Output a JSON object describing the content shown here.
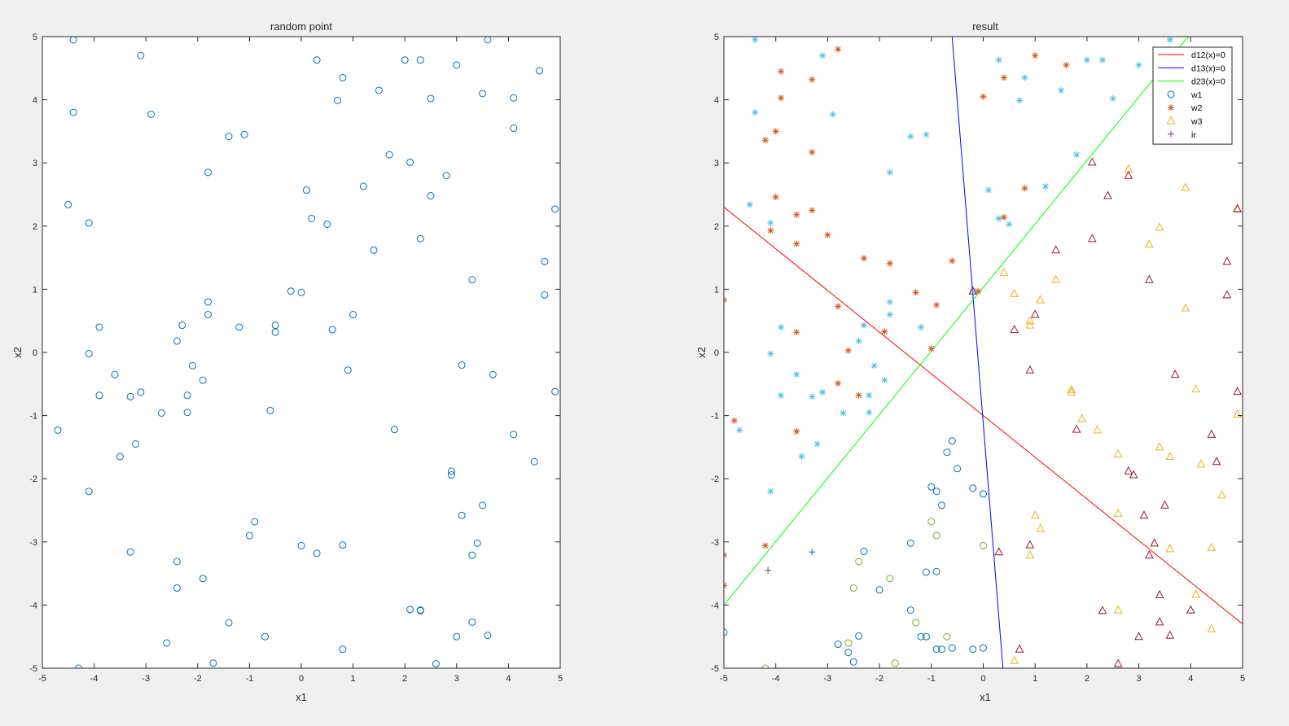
{
  "figure": {
    "background": "#f0f0f0",
    "axes_background": "#ffffff"
  },
  "chart_data": [
    {
      "type": "scatter",
      "title": "random point",
      "xlabel": "x1",
      "ylabel": "x2",
      "xlim": [
        -5,
        5
      ],
      "ylim": [
        -5,
        5
      ],
      "xticks": [
        -5,
        -4,
        -3,
        -2,
        -1,
        0,
        1,
        2,
        3,
        4,
        5
      ],
      "yticks": [
        -5,
        -4,
        -3,
        -2,
        -1,
        0,
        1,
        2,
        3,
        4,
        5
      ],
      "grid": false,
      "legend": null,
      "series": [
        {
          "marker": "circle",
          "color": "#0072bd",
          "x": [
            -4.4,
            -3.1,
            -4.4,
            -2.9,
            -4.5,
            -4.1,
            -3.9,
            -4.1,
            -3.6,
            -3.9,
            -4.7,
            -3.5,
            -4.1,
            -3.3,
            -1.4,
            -1.1,
            -1.8,
            -3.3,
            -2.6,
            -3.1,
            -3.2,
            -2.7,
            -2.3,
            -2.4,
            -2.1,
            -2.2,
            -2.2,
            -1.9,
            -1.8,
            -1.8,
            -1.2,
            -0.5,
            -0.5,
            -0.2,
            0.0,
            -0.6,
            -0.9,
            -1.0,
            -1.9,
            -2.4,
            -2.4,
            -1.7,
            -1.4,
            -0.7,
            0.3,
            0.8,
            0.7,
            0.1,
            0.2,
            0.5,
            0.6,
            1.0,
            0.9,
            0.8,
            1.2,
            1.4,
            1.5,
            1.7,
            1.8,
            2.0,
            2.1,
            2.3,
            2.3,
            2.5,
            2.5,
            2.8,
            3.0,
            3.1,
            3.3,
            3.6,
            3.5,
            4.1,
            4.1,
            4.6,
            4.7,
            4.9,
            4.9,
            4.7,
            4.1,
            4.5,
            3.7,
            3.5,
            3.4,
            3.3,
            3.1,
            2.9,
            2.9,
            2.3,
            2.1,
            2.6,
            3.0,
            3.6,
            3.3,
            0.0,
            0.3,
            0.8,
            2.3,
            -4.3
          ],
          "y": [
            4.95,
            4.7,
            3.8,
            3.77,
            2.34,
            2.05,
            0.4,
            -0.02,
            -0.35,
            -0.68,
            -1.23,
            -1.65,
            -2.2,
            -0.7,
            3.42,
            3.45,
            2.85,
            -3.16,
            -4.6,
            -0.63,
            -1.45,
            -0.96,
            0.43,
            0.18,
            -0.21,
            -0.68,
            -0.95,
            -0.44,
            0.8,
            0.6,
            0.4,
            0.43,
            0.32,
            0.97,
            0.95,
            -0.92,
            -2.68,
            -2.9,
            -3.58,
            -3.31,
            -3.73,
            -4.92,
            -4.28,
            -4.5,
            4.63,
            4.35,
            3.99,
            2.57,
            2.12,
            2.03,
            0.36,
            0.6,
            -0.28,
            -3.05,
            2.63,
            1.62,
            4.15,
            3.13,
            -1.22,
            4.63,
            3.01,
            4.63,
            1.8,
            4.02,
            2.48,
            2.8,
            4.55,
            -0.2,
            1.15,
            4.95,
            4.1,
            4.03,
            3.55,
            4.46,
            1.44,
            2.27,
            -0.62,
            0.91,
            -1.3,
            -1.73,
            -0.35,
            -2.42,
            -3.02,
            -3.21,
            -2.58,
            -1.88,
            -1.94,
            -4.08,
            -4.07,
            -4.93,
            -4.5,
            -4.48,
            -4.27,
            -3.06,
            -3.18,
            -4.7,
            -4.09,
            -5.0
          ]
        }
      ]
    },
    {
      "type": "scatter",
      "title": "result",
      "xlabel": "x1",
      "ylabel": "x2",
      "xlim": [
        -5,
        5
      ],
      "ylim": [
        -5,
        5
      ],
      "xticks": [
        -5,
        -4,
        -3,
        -2,
        -1,
        0,
        1,
        2,
        3,
        4,
        5
      ],
      "yticks": [
        -5,
        -4,
        -3,
        -2,
        -1,
        0,
        1,
        2,
        3,
        4,
        5
      ],
      "grid": false,
      "legend": {
        "position": "top-right",
        "entries": [
          {
            "label": "d12(x)=0",
            "kind": "line",
            "color": "#ff0000"
          },
          {
            "label": "d13(x)=0",
            "kind": "line",
            "color": "#0000ff"
          },
          {
            "label": "d23(x)=0",
            "kind": "line",
            "color": "#00ff00"
          },
          {
            "label": "w1",
            "kind": "circle",
            "color": "#0072bd"
          },
          {
            "label": "w2",
            "kind": "asterisk",
            "color": "#d95319"
          },
          {
            "label": "w3",
            "kind": "triangle",
            "color": "#edb120"
          },
          {
            "label": "ir",
            "kind": "plus",
            "color": "#7e2f8e"
          }
        ]
      },
      "lines": [
        {
          "name": "d12(x)=0",
          "color": "#ff0000",
          "x": [
            -5,
            5
          ],
          "y": [
            2.3,
            -4.3
          ]
        },
        {
          "name": "d13(x)=0",
          "color": "#0000ff",
          "x": [
            -0.6,
            0.38
          ],
          "y": [
            5.0,
            -5.0
          ]
        },
        {
          "name": "d23(x)=0",
          "color": "#00ff00",
          "x": [
            -5,
            3.95
          ],
          "y": [
            -4.0,
            5.0
          ]
        }
      ],
      "series": [
        {
          "marker": "asterisk",
          "color": "#4dbeee",
          "x": [
            -4.4,
            -3.1,
            -4.4,
            -2.9,
            -4.5,
            -4.1,
            -3.9,
            -4.1,
            -3.6,
            -3.9,
            -4.7,
            -3.5,
            -4.1,
            -3.3,
            -1.4,
            -1.1,
            -1.8,
            -3.1,
            -3.2,
            -2.7,
            -2.3,
            -2.4,
            -2.1,
            -2.2,
            -2.2,
            -1.9,
            -1.8,
            -1.8,
            -1.2,
            -0.2,
            0.1,
            0.3,
            0.7,
            0.8,
            0.5,
            1.2,
            1.5,
            1.8,
            2.0,
            2.3,
            2.5,
            3.0,
            3.6,
            0.3
          ],
          "y": [
            4.95,
            4.7,
            3.8,
            3.77,
            2.34,
            2.05,
            0.4,
            -0.02,
            -0.35,
            -0.68,
            -1.23,
            -1.65,
            -2.2,
            -0.7,
            3.42,
            3.45,
            2.85,
            -0.63,
            -1.45,
            -0.96,
            0.43,
            0.18,
            -0.21,
            -0.68,
            -0.95,
            -0.44,
            0.8,
            0.6,
            0.4,
            0.97,
            2.57,
            2.12,
            3.99,
            4.35,
            2.03,
            2.63,
            4.15,
            3.13,
            4.63,
            4.63,
            4.02,
            4.55,
            4.95,
            4.63
          ]
        },
        {
          "marker": "asterisk",
          "color": "#d95319",
          "x": [
            -2.8,
            -3.9,
            -4.2,
            -3.3,
            -3.9,
            -3.3,
            -3.0,
            -4.0,
            -3.6,
            -3.3,
            -3.6,
            -4.1,
            -5.0,
            -4.0,
            -3.6,
            -2.8,
            -2.3,
            -1.8,
            -1.3,
            -0.9,
            -0.6,
            -0.1,
            0.0,
            0.4,
            0.4,
            0.8,
            1.0,
            1.6,
            -2.6,
            -2.4,
            -2.8,
            -1.9,
            -1.0,
            -4.8,
            -3.6,
            -4.2,
            -5.0,
            -5.0
          ],
          "y": [
            4.8,
            4.45,
            3.36,
            4.32,
            4.03,
            3.17,
            1.86,
            3.5,
            2.18,
            2.25,
            1.72,
            1.93,
            0.83,
            2.46,
            0.32,
            0.73,
            1.49,
            1.41,
            0.95,
            0.75,
            1.45,
            0.97,
            4.05,
            4.35,
            2.14,
            2.6,
            4.7,
            4.55,
            0.03,
            -0.68,
            -0.49,
            0.33,
            0.06,
            -1.08,
            -1.25,
            -3.06,
            -3.21,
            -3.69
          ]
        },
        {
          "marker": "triangle",
          "color": "#edb120",
          "x": [
            0.4,
            0.6,
            0.9,
            0.9,
            1.1,
            1.4,
            1.7,
            1.7,
            1.9,
            2.2,
            2.6,
            2.6,
            2.8,
            3.2,
            3.4,
            3.4,
            3.6,
            3.6,
            3.9,
            3.9,
            4.1,
            4.2,
            4.4,
            4.4,
            4.6,
            4.9,
            4.9,
            4.1,
            1.0,
            1.1,
            0.9,
            0.6,
            2.6
          ],
          "y": [
            1.26,
            0.93,
            0.5,
            0.43,
            0.83,
            1.15,
            -0.59,
            -0.63,
            -1.05,
            -1.23,
            -1.61,
            -2.55,
            2.9,
            1.71,
            1.98,
            -1.5,
            -1.65,
            -3.11,
            2.61,
            0.7,
            -0.58,
            -1.77,
            -3.09,
            -4.38,
            -2.26,
            2.28,
            -0.98,
            -3.83,
            -2.58,
            -2.79,
            -3.21,
            -4.88,
            -4.08
          ]
        },
        {
          "marker": "triangle",
          "color": "#a2142f",
          "x": [
            2.1,
            2.8,
            2.4,
            2.1,
            3.2,
            1.4,
            0.6,
            1.0,
            0.9,
            0.3,
            0.9,
            1.8,
            2.8,
            2.9,
            3.1,
            3.2,
            3.3,
            3.4,
            3.4,
            3.5,
            3.6,
            3.7,
            4.0,
            4.4,
            4.5,
            4.7,
            4.7,
            4.9,
            4.9,
            -0.2,
            2.3,
            3.0,
            2.6,
            0.7
          ],
          "y": [
            3.01,
            2.8,
            2.48,
            1.8,
            1.15,
            1.62,
            0.36,
            0.6,
            -0.28,
            -3.16,
            -3.05,
            -1.22,
            -1.88,
            -1.94,
            -2.58,
            -3.21,
            -3.02,
            -3.84,
            -4.27,
            -2.42,
            -4.48,
            -0.35,
            -4.08,
            -1.3,
            -1.73,
            1.44,
            0.91,
            2.27,
            -0.62,
            0.97,
            -4.09,
            -4.5,
            -4.93,
            -4.7
          ]
        },
        {
          "marker": "circle",
          "color": "#0072bd",
          "x": [
            -0.6,
            -0.7,
            -0.5,
            -1.0,
            -0.9,
            -0.8,
            0.0,
            -0.2,
            -1.4,
            -1.1,
            -0.9,
            -1.4,
            -1.2,
            -1.1,
            -0.9,
            -0.8,
            -0.6,
            -2.0,
            -2.3,
            -2.4,
            -2.5,
            -2.6,
            -2.8,
            -0.2,
            0.0,
            -5.0
          ],
          "y": [
            -1.4,
            -1.58,
            -1.84,
            -2.13,
            -2.2,
            -2.42,
            -2.24,
            -2.15,
            -3.02,
            -3.48,
            -3.47,
            -4.08,
            -4.5,
            -4.5,
            -4.7,
            -4.7,
            -4.68,
            -3.76,
            -3.15,
            -4.49,
            -4.9,
            -4.75,
            -4.62,
            -4.7,
            -4.68,
            -4.43
          ]
        },
        {
          "marker": "circle",
          "color": "#77ac30",
          "x": [
            -1.0,
            -0.9,
            -1.8,
            -2.4,
            -2.5,
            -2.6,
            -1.3,
            -1.7,
            -0.7,
            0.0,
            -4.2
          ],
          "y": [
            -2.68,
            -2.9,
            -3.58,
            -3.31,
            -3.73,
            -4.6,
            -4.28,
            -4.92,
            -4.5,
            -3.06,
            -5.0
          ]
        },
        {
          "marker": "plus",
          "color": "#0072bd",
          "x": [
            -3.3
          ],
          "y": [
            -3.16
          ]
        },
        {
          "marker": "plus",
          "color": "#7e2f8e",
          "x": [
            -4.15
          ],
          "y": [
            -3.45
          ]
        }
      ]
    }
  ]
}
